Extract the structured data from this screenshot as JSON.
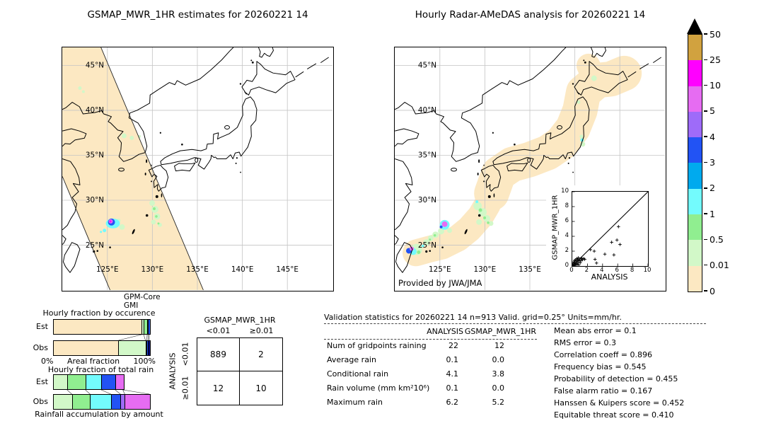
{
  "palette": {
    "p50": "#d1a23f",
    "p25": "#ff00ff",
    "p10": "#e66cf2",
    "p5": "#9e6bf9",
    "p4": "#2253f4",
    "p3": "#00aaee",
    "p2": "#73fbfd",
    "p1": "#90ee90",
    "p05": "#d2f8c8",
    "p001": "#fce8c2",
    "navy": "#000080"
  },
  "left_map": {
    "title": "GSMAP_MWR_1HR estimates for 20260221 14",
    "lat_labels": [
      "45°N",
      "40°N",
      "35°N",
      "30°N",
      "25°N"
    ],
    "lon_labels": [
      "125°E",
      "130°E",
      "135°E",
      "140°E",
      "145°E"
    ],
    "source_line1": "GPM-Core",
    "source_line2": "GMI"
  },
  "right_map": {
    "title": "Hourly Radar-AMeDAS analysis for 20260221 14",
    "lat_labels": [
      "45°N",
      "40°N",
      "35°N",
      "30°N",
      "25°N"
    ],
    "lon_labels": [
      "125°E",
      "130°E",
      "135°E"
    ],
    "credit": "Provided by JWA/JMA"
  },
  "colorbar": {
    "levels": [
      "50",
      "25",
      "10",
      "5",
      "4",
      "3",
      "2",
      "1",
      "0.5",
      "0.01",
      "0"
    ],
    "colors": [
      "#d1a23f",
      "#ff00ff",
      "#e66cf2",
      "#9e6bf9",
      "#2253f4",
      "#00aaee",
      "#73fbfd",
      "#90ee90",
      "#d2f8c8",
      "#fce8c2"
    ]
  },
  "chart_data": [
    {
      "type": "bar",
      "name": "hourly-fraction-by-occurrence",
      "title": "Hourly fraction by occurence",
      "row_labels": [
        "Est",
        "Obs"
      ],
      "xlabel": "Areal fraction",
      "x_min_label": "0%",
      "x_max_label": "100%",
      "xlim": [
        0,
        100
      ],
      "est_segments": [
        {
          "color": "#fce8c2",
          "pct": 92
        },
        {
          "color": "#d2f8c8",
          "pct": 2.2
        },
        {
          "color": "#90ee90",
          "pct": 3.6
        },
        {
          "color": "#73fbfd",
          "pct": 1.1
        },
        {
          "color": "#2253f4",
          "pct": 1.1
        }
      ],
      "obs_segments": [
        {
          "color": "#fce8c2",
          "pct": 68
        },
        {
          "color": "#d2f8c8",
          "pct": 28
        },
        {
          "color": "#73fbfd",
          "pct": 1.4
        },
        {
          "color": "#2253f4",
          "pct": 1.4
        },
        {
          "color": "#000080",
          "pct": 1.2
        }
      ]
    },
    {
      "type": "bar",
      "name": "hourly-fraction-of-total-rain",
      "title": "Hourly fraction of total rain",
      "row_labels": [
        "Est",
        "Obs"
      ],
      "caption": "Rainfall accumulation by amount",
      "xlim": [
        0,
        100
      ],
      "est_segments": [
        {
          "color": "#d2f8c8",
          "pct": 14.5
        },
        {
          "color": "#90ee90",
          "pct": 19
        },
        {
          "color": "#73fbfd",
          "pct": 16.5
        },
        {
          "color": "#2253f4",
          "pct": 14.5
        },
        {
          "color": "#e66cf2",
          "pct": 8
        }
      ],
      "obs_segments": [
        {
          "color": "#d2f8c8",
          "pct": 19.5
        },
        {
          "color": "#90ee90",
          "pct": 19
        },
        {
          "color": "#73fbfd",
          "pct": 21.5
        },
        {
          "color": "#2253f4",
          "pct": 10
        },
        {
          "color": "#9e6bf9",
          "pct": 4.5
        },
        {
          "color": "#e66cf2",
          "pct": 25.5
        }
      ]
    },
    {
      "type": "table",
      "name": "contingency-table",
      "title": "GSMAP_MWR_1HR",
      "row_axis_label": "ANALYSIS",
      "col_labels": [
        "<0.01",
        "≥0.01"
      ],
      "row_labels": [
        "<0.01",
        "≥0.01"
      ],
      "values": [
        [
          "889",
          "2"
        ],
        [
          "12",
          "10"
        ]
      ]
    },
    {
      "type": "scatter",
      "name": "analysis-vs-gsmap-scatter",
      "xlabel": "ANALYSIS",
      "ylabel": "GSMAP_MWR_1HR",
      "xlim": [
        0,
        10
      ],
      "ylim": [
        0,
        10
      ],
      "tick_labels": [
        "0",
        "2",
        "4",
        "6",
        "8",
        "10"
      ],
      "identity_line": true,
      "points": [
        [
          0.05,
          0.1
        ],
        [
          0.1,
          0.35
        ],
        [
          0.15,
          0.05
        ],
        [
          0.2,
          0.55
        ],
        [
          0.25,
          0.2
        ],
        [
          0.3,
          0.75
        ],
        [
          0.35,
          0.45
        ],
        [
          0.4,
          0.1
        ],
        [
          0.45,
          0.85
        ],
        [
          0.5,
          0.35
        ],
        [
          0.55,
          0.65
        ],
        [
          0.6,
          1.0
        ],
        [
          0.65,
          0.25
        ],
        [
          0.7,
          0.8
        ],
        [
          0.75,
          0.5
        ],
        [
          0.8,
          1.1
        ],
        [
          0.85,
          0.15
        ],
        [
          0.9,
          0.7
        ],
        [
          1.0,
          0.95
        ],
        [
          1.05,
          0.45
        ],
        [
          1.15,
          0.75
        ],
        [
          1.25,
          1.05
        ],
        [
          1.35,
          0.85
        ],
        [
          1.5,
          1.0
        ],
        [
          1.65,
          0.9
        ],
        [
          2.4,
          2.2
        ],
        [
          2.9,
          2.0
        ],
        [
          3.0,
          0.9
        ],
        [
          3.2,
          0.4
        ],
        [
          4.3,
          1.6
        ],
        [
          5.2,
          3.2
        ],
        [
          5.5,
          1.5
        ],
        [
          5.9,
          3.5
        ],
        [
          6.1,
          5.3
        ],
        [
          6.3,
          2.9
        ]
      ]
    }
  ],
  "validation": {
    "title": "Validation statistics for 20260221 14  n=913 Valid. grid=0.25° Units=mm/hr.",
    "col_headers": [
      "ANALYSIS",
      "GSMAP_MWR_1HR"
    ],
    "rows": [
      {
        "label": "Num of gridpoints raining",
        "analysis": "22",
        "gsmap": "12"
      },
      {
        "label": "Average rain",
        "analysis": "0.1",
        "gsmap": "0.0"
      },
      {
        "label": "Conditional rain",
        "analysis": "4.1",
        "gsmap": "3.8"
      },
      {
        "label": "Rain volume (mm km²10⁶)",
        "analysis": "0.1",
        "gsmap": "0.0"
      },
      {
        "label": "Maximum rain",
        "analysis": "6.2",
        "gsmap": "5.2"
      }
    ],
    "stats": [
      {
        "label": "Mean abs error",
        "value": "0.1"
      },
      {
        "label": "RMS error",
        "value": "0.3"
      },
      {
        "label": "Correlation coeff",
        "value": "0.896"
      },
      {
        "label": "Frequency bias",
        "value": "0.545"
      },
      {
        "label": "Probability of detection",
        "value": "0.455"
      },
      {
        "label": "False alarm ratio",
        "value": "0.167"
      },
      {
        "label": "Hanssen & Kuipers score",
        "value": "0.452"
      },
      {
        "label": "Equitable threat score",
        "value": "0.410"
      }
    ]
  }
}
